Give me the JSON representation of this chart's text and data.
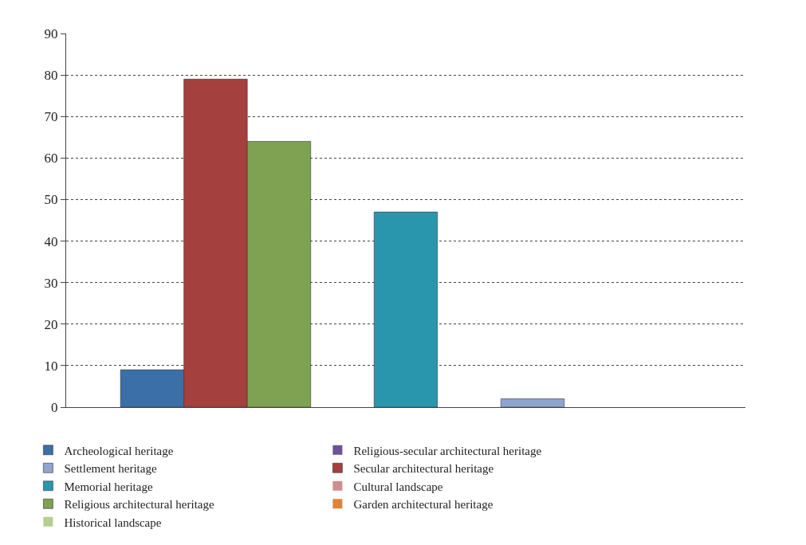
{
  "chart_data": {
    "type": "bar",
    "categories": [
      null
    ],
    "series": [
      {
        "name": "Archeological heritage",
        "color": "#3b6fa8",
        "values": [
          9
        ]
      },
      {
        "name": "Secular architectural heritage",
        "color": "#a4403d",
        "values": [
          79
        ]
      },
      {
        "name": "Religious architectural heritage",
        "color": "#7fa152",
        "values": [
          64
        ]
      },
      {
        "name": "Religious-secular architectural heritage",
        "color": "#6a5496",
        "values": [
          0
        ]
      },
      {
        "name": "Memorial heritage",
        "color": "#2a96ad",
        "values": [
          47
        ]
      },
      {
        "name": "Garden architectural heritage",
        "color": "#e0833a",
        "values": [
          0
        ]
      },
      {
        "name": "Settlement heritage",
        "color": "#8ea5cf",
        "values": [
          2
        ]
      },
      {
        "name": "Cultural landscape",
        "color": "#cf8e8d",
        "values": [
          0
        ]
      },
      {
        "name": "Historical landscape",
        "color": "#b4cf8f",
        "values": [
          0
        ]
      }
    ],
    "ylim": [
      0,
      90
    ],
    "yticks": [
      0,
      10,
      20,
      30,
      40,
      50,
      60,
      70,
      80,
      90
    ],
    "grid": "y",
    "legend": "bottom"
  }
}
